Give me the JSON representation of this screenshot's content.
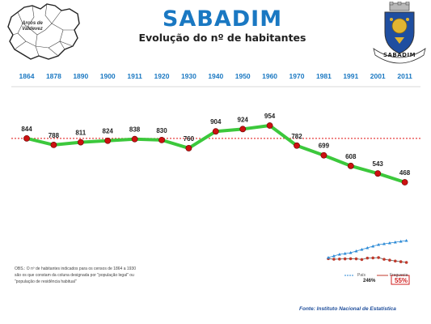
{
  "header": {
    "title": "SABADIM",
    "subtitle": "Evolução do nº de habitantes"
  },
  "map": {
    "label": "Arcos de Valdevez"
  },
  "crest": {
    "banner": "SABADIM"
  },
  "colors": {
    "title": "#1a78c2",
    "year_labels": "#1a78c2",
    "line": "#3cc83c",
    "marker": "#cc1111",
    "reference_line": "#e01010",
    "mini_pais": "#2b8ad6",
    "mini_freguesia": "#c0392b",
    "source": "#1f4e9b"
  },
  "chart_data": {
    "type": "line",
    "categories": [
      "1864",
      "1878",
      "1890",
      "1900",
      "1911",
      "1920",
      "1930",
      "1940",
      "1950",
      "1960",
      "1970",
      "1981",
      "1991",
      "2001",
      "2011"
    ],
    "series": [
      {
        "values": [
          844,
          788,
          811,
          824,
          838,
          830,
          760,
          904,
          924,
          954,
          782,
          699,
          608,
          543,
          468
        ]
      }
    ],
    "reference_line": 844,
    "ylim": [
      350,
      1050
    ],
    "grid": false,
    "inset": {
      "type": "line",
      "series": [
        {
          "name": "País"
        },
        {
          "name": "Freguesia"
        }
      ],
      "labels": {
        "pais_change": "246%",
        "freguesia_change": "55%"
      },
      "legend_position": "bottom"
    }
  },
  "notes": {
    "obs": "OBS.: O nº de habitantes indicados para os censos de 1864 a 1930 são os que constam da coluna designada por \"população legal\" ou \"população de residência habitual\""
  },
  "footer": {
    "source": "Fonte: Instituto Nacional de Estatística"
  }
}
